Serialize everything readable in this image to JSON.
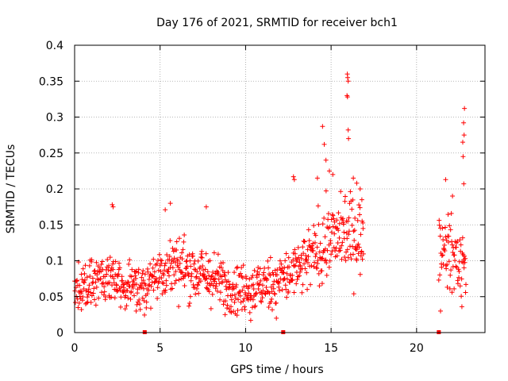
{
  "chart_data": {
    "type": "scatter",
    "title": "Day 176 of 2021, SRMTID for receiver bch1",
    "xlabel": "GPS time / hours",
    "ylabel": "SRMTID / TECUs",
    "xlim": [
      0,
      24
    ],
    "ylim": [
      0,
      0.4
    ],
    "xticks": [
      0,
      5,
      10,
      15,
      20
    ],
    "xtick_labels": [
      "0",
      "5",
      "10",
      "15",
      "20"
    ],
    "yticks": [
      0,
      0.05,
      0.1,
      0.15,
      0.2,
      0.25,
      0.3,
      0.35,
      0.4
    ],
    "ytick_labels": [
      "0",
      "0.05",
      "0.1",
      "0.15",
      "0.2",
      "0.25",
      "0.3",
      "0.35",
      "0.4"
    ],
    "grid": true,
    "marker": "+",
    "color": "#ff0000",
    "zero_markers_x": [
      4.1,
      12.2,
      21.3
    ],
    "segments": [
      {
        "x_start": 0.0,
        "x_end": 16.9,
        "step": 0.008333,
        "mean_profile": [
          [
            0.0,
            0.06
          ],
          [
            1.0,
            0.07
          ],
          [
            2.0,
            0.085
          ],
          [
            2.5,
            0.07
          ],
          [
            3.0,
            0.06
          ],
          [
            4.0,
            0.065
          ],
          [
            5.0,
            0.085
          ],
          [
            6.0,
            0.095
          ],
          [
            7.0,
            0.085
          ],
          [
            8.0,
            0.075
          ],
          [
            9.0,
            0.065
          ],
          [
            10.0,
            0.06
          ],
          [
            11.0,
            0.065
          ],
          [
            12.0,
            0.075
          ],
          [
            13.0,
            0.085
          ],
          [
            13.5,
            0.095
          ],
          [
            14.0,
            0.11
          ],
          [
            15.0,
            0.13
          ],
          [
            16.0,
            0.14
          ],
          [
            16.9,
            0.13
          ]
        ],
        "spread": 0.028
      },
      {
        "x_start": 21.3,
        "x_end": 22.9,
        "step": 0.008333,
        "mean_profile": [
          [
            21.3,
            0.12
          ],
          [
            22.0,
            0.11
          ],
          [
            22.5,
            0.095
          ],
          [
            22.9,
            0.1
          ]
        ],
        "spread": 0.03
      }
    ],
    "extreme_points": [
      {
        "x": 15.95,
        "y": 0.36
      },
      {
        "x": 15.97,
        "y": 0.355
      },
      {
        "x": 16.0,
        "y": 0.35
      },
      {
        "x": 15.93,
        "y": 0.33
      },
      {
        "x": 15.96,
        "y": 0.328
      },
      {
        "x": 14.5,
        "y": 0.287
      },
      {
        "x": 16.0,
        "y": 0.282
      },
      {
        "x": 16.02,
        "y": 0.27
      },
      {
        "x": 22.8,
        "y": 0.312
      },
      {
        "x": 22.75,
        "y": 0.292
      },
      {
        "x": 22.78,
        "y": 0.275
      },
      {
        "x": 22.7,
        "y": 0.265
      },
      {
        "x": 22.72,
        "y": 0.245
      },
      {
        "x": 22.76,
        "y": 0.207
      },
      {
        "x": 14.6,
        "y": 0.262
      },
      {
        "x": 14.7,
        "y": 0.24
      },
      {
        "x": 14.9,
        "y": 0.225
      },
      {
        "x": 16.3,
        "y": 0.215
      },
      {
        "x": 16.5,
        "y": 0.208
      },
      {
        "x": 12.8,
        "y": 0.217
      },
      {
        "x": 12.85,
        "y": 0.213
      },
      {
        "x": 2.2,
        "y": 0.178
      },
      {
        "x": 2.25,
        "y": 0.175
      },
      {
        "x": 5.6,
        "y": 0.18
      },
      {
        "x": 5.3,
        "y": 0.171
      },
      {
        "x": 7.7,
        "y": 0.175
      },
      {
        "x": 21.7,
        "y": 0.213
      },
      {
        "x": 22.1,
        "y": 0.19
      },
      {
        "x": 14.2,
        "y": 0.215
      },
      {
        "x": 15.1,
        "y": 0.22
      },
      {
        "x": 21.4,
        "y": 0.03
      },
      {
        "x": 22.65,
        "y": 0.036
      },
      {
        "x": 10.3,
        "y": 0.017
      },
      {
        "x": 11.8,
        "y": 0.02
      },
      {
        "x": 8.8,
        "y": 0.025
      },
      {
        "x": 3.6,
        "y": 0.03
      },
      {
        "x": 0.4,
        "y": 0.032
      },
      {
        "x": 16.7,
        "y": 0.2
      },
      {
        "x": 16.8,
        "y": 0.185
      }
    ]
  }
}
